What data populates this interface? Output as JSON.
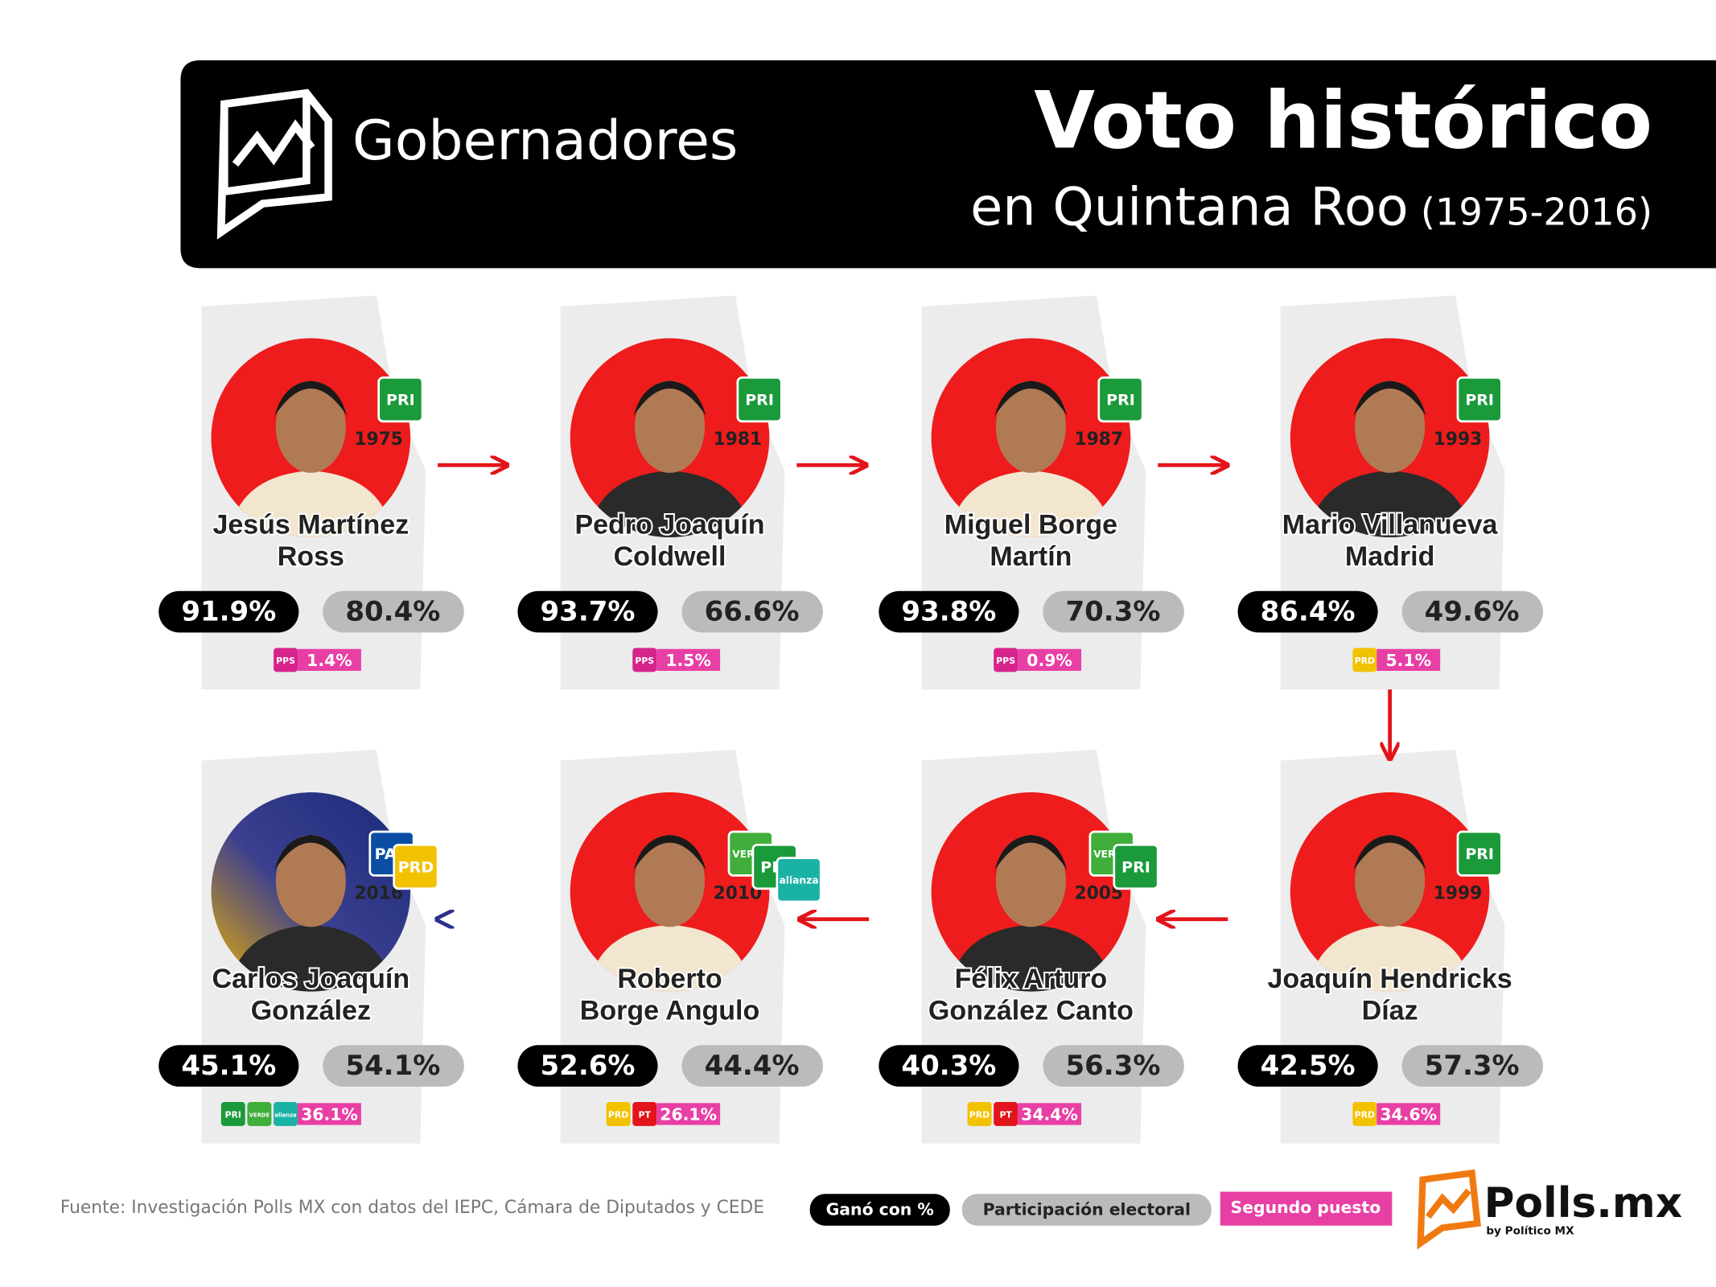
{
  "header": {
    "section": "Gobernadores",
    "title": "Voto histórico",
    "subtitle": "en Quintana Roo",
    "period": "(1975-2016)"
  },
  "governors": [
    {
      "name": [
        "Jesús Martínez",
        "Ross"
      ],
      "year": "1975",
      "parties": [
        {
          "label": "PRI",
          "color": "#1a9a3a"
        }
      ],
      "won": "91.9%",
      "turnout": "80.4%",
      "second": {
        "parties": [
          {
            "label": "PPS",
            "color": "#d6248c"
          }
        ],
        "share": "1.4%"
      }
    },
    {
      "name": [
        "Pedro Joaquín",
        "Coldwell"
      ],
      "year": "1981",
      "parties": [
        {
          "label": "PRI",
          "color": "#1a9a3a"
        }
      ],
      "won": "93.7%",
      "turnout": "66.6%",
      "second": {
        "parties": [
          {
            "label": "PPS",
            "color": "#d6248c"
          }
        ],
        "share": "1.5%"
      }
    },
    {
      "name": [
        "Miguel Borge",
        "Martín"
      ],
      "year": "1987",
      "parties": [
        {
          "label": "PRI",
          "color": "#1a9a3a"
        }
      ],
      "won": "93.8%",
      "turnout": "70.3%",
      "second": {
        "parties": [
          {
            "label": "PPS",
            "color": "#d6248c"
          }
        ],
        "share": "0.9%"
      }
    },
    {
      "name": [
        "Mario Villanueva",
        "Madrid"
      ],
      "year": "1993",
      "parties": [
        {
          "label": "PRI",
          "color": "#1a9a3a"
        }
      ],
      "won": "86.4%",
      "turnout": "49.6%",
      "second": {
        "parties": [
          {
            "label": "PRD",
            "color": "#f2c200"
          }
        ],
        "share": "5.1%"
      }
    },
    {
      "name": [
        "Joaquín Hendricks",
        "Díaz"
      ],
      "year": "1999",
      "parties": [
        {
          "label": "PRI",
          "color": "#1a9a3a"
        }
      ],
      "won": "42.5%",
      "turnout": "57.3%",
      "second": {
        "parties": [
          {
            "label": "PRD",
            "color": "#f2c200"
          }
        ],
        "share": "34.6%"
      }
    },
    {
      "name": [
        "Félix Arturo",
        "González Canto"
      ],
      "year": "2005",
      "parties": [
        {
          "label": "VERDE",
          "color": "#3fae3a"
        },
        {
          "label": "PRI",
          "color": "#1a9a3a"
        }
      ],
      "won": "40.3%",
      "turnout": "56.3%",
      "second": {
        "parties": [
          {
            "label": "PRD",
            "color": "#f2c200"
          },
          {
            "label": "PT",
            "color": "#e3141b"
          }
        ],
        "share": "34.4%"
      }
    },
    {
      "name": [
        "Roberto",
        "Borge Angulo"
      ],
      "year": "2010",
      "parties": [
        {
          "label": "VERDE",
          "color": "#3fae3a"
        },
        {
          "label": "PRI",
          "color": "#1a9a3a"
        },
        {
          "label": "alianza",
          "color": "#1bb2a6"
        }
      ],
      "won": "52.6%",
      "turnout": "44.4%",
      "second": {
        "parties": [
          {
            "label": "PRD",
            "color": "#f2c200"
          },
          {
            "label": "PT",
            "color": "#e3141b"
          }
        ],
        "share": "26.1%"
      }
    },
    {
      "name": [
        "Carlos Joaquín",
        "González"
      ],
      "year": "2016",
      "parties": [
        {
          "label": "PAN",
          "color": "#0b4da2"
        },
        {
          "label": "PRD",
          "color": "#f2c200"
        }
      ],
      "won": "45.1%",
      "turnout": "54.1%",
      "second": {
        "parties": [
          {
            "label": "PRI",
            "color": "#1a9a3a"
          },
          {
            "label": "VERDE",
            "color": "#3fae3a"
          },
          {
            "label": "alianza",
            "color": "#1bb2a6"
          }
        ],
        "share": "36.1%"
      }
    }
  ],
  "footer": {
    "source": "Fuente: Investigación Polls MX con datos del IEPC, Cámara de Diputados y CEDE",
    "legend": [
      "Ganó con %",
      "Participación electoral",
      "Segundo puesto"
    ],
    "brand": "Polls.mx",
    "brand_sub": "by Político MX"
  }
}
